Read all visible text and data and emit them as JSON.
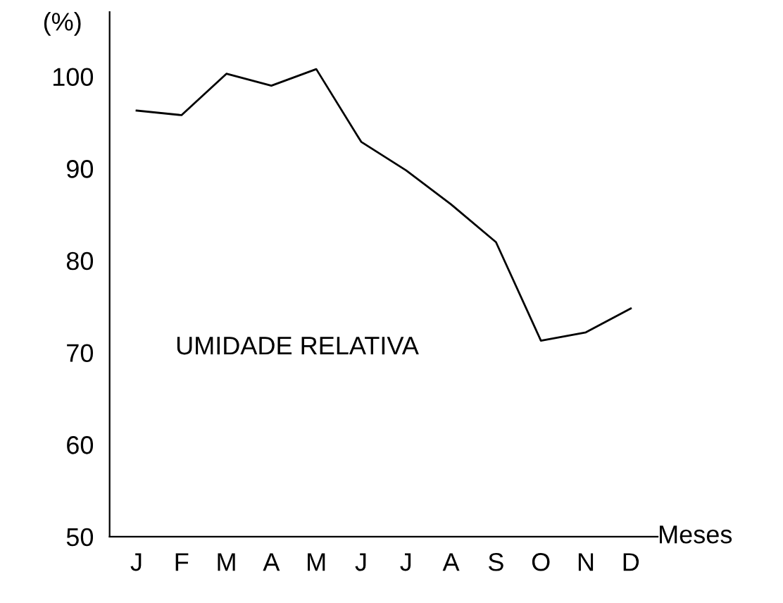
{
  "chart_data": {
    "type": "line",
    "ylabel": "(%)",
    "xlabel": "Meses",
    "annotations": [
      "UMIDADE RELATIVA"
    ],
    "categories": [
      "J",
      "F",
      "M",
      "A",
      "M",
      "J",
      "J",
      "A",
      "S",
      "O",
      "N",
      "D"
    ],
    "series": [
      {
        "color": "#000000",
        "values": [
          96.3,
          95.8,
          100.3,
          99.0,
          100.8,
          92.9,
          89.8,
          86.1,
          82.0,
          71.3,
          72.2,
          74.8
        ]
      }
    ],
    "ylim": [
      50,
      107
    ],
    "yticks": [
      50,
      60,
      70,
      80,
      90,
      100
    ],
    "marker": "none",
    "line_style": "solid"
  }
}
